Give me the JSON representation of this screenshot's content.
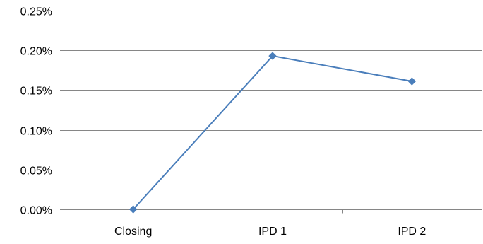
{
  "chart_data": {
    "type": "line",
    "title": "",
    "xlabel": "",
    "ylabel": "",
    "categories": [
      "Closing",
      "IPD 1",
      "IPD 2"
    ],
    "series": [
      {
        "values": [
          0.0,
          0.193,
          0.161
        ],
        "color": "#4a7ebb",
        "marker": "diamond"
      }
    ],
    "ylim": [
      0,
      0.25
    ],
    "yticks": [
      0,
      0.05,
      0.1,
      0.15,
      0.2,
      0.25
    ],
    "ytick_labels": [
      "0.00%",
      "0.05%",
      "0.10%",
      "0.15%",
      "0.20%",
      "0.25%"
    ],
    "grid": true,
    "legend": "none",
    "colors": {
      "gridline": "#868686",
      "axis": "#868686"
    }
  }
}
